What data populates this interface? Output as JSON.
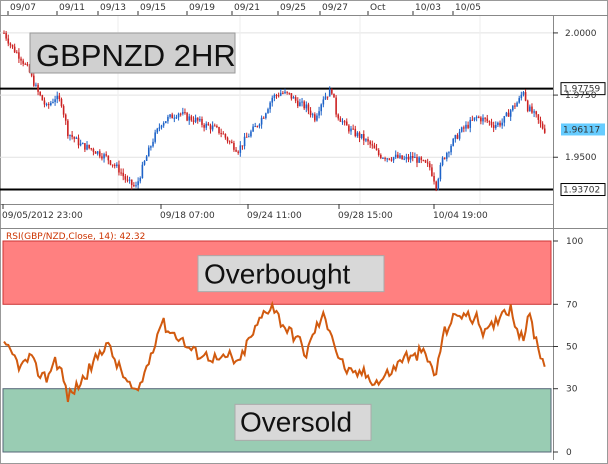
{
  "chart_data": [
    {
      "type": "candlestick",
      "title": "GBPNZD 2HR",
      "top_date_labels": [
        "09/07",
        "09/11",
        "09/13",
        "09/15",
        "09/19",
        "09/21",
        "09/25",
        "09/27",
        "Oct",
        "10/03",
        "10/05"
      ],
      "bottom_time_labels": [
        "09/05/2012 23:00",
        "09/18 07:00",
        "09/24 11:00",
        "09/28 15:00",
        "10/04 19:00"
      ],
      "y_ticks": [
        "2.0000",
        "1.9750",
        "1.9500"
      ],
      "ylim": [
        1.932,
        2.006
      ],
      "levels": [
        {
          "label": "1.97759",
          "value": 1.97759,
          "color": "#000000"
        },
        {
          "label": "1.93702",
          "value": 1.93702,
          "color": "#000000"
        }
      ],
      "current_price": {
        "label": "1.96117",
        "value": 1.96117,
        "color": "#66ccff"
      },
      "up_color": "#1e63c8",
      "down_color": "#cc2222",
      "path": [
        [
          0,
          2.0
        ],
        [
          4,
          1.994
        ],
        [
          8,
          1.99
        ],
        [
          12,
          1.984
        ],
        [
          16,
          1.976
        ],
        [
          20,
          1.97
        ],
        [
          24,
          1.974
        ],
        [
          27,
          1.972
        ],
        [
          30,
          1.96
        ],
        [
          36,
          1.955
        ],
        [
          42,
          1.953
        ],
        [
          48,
          1.95
        ],
        [
          54,
          1.945
        ],
        [
          58,
          1.94
        ],
        [
          62,
          1.938
        ],
        [
          66,
          1.948
        ],
        [
          70,
          1.957
        ],
        [
          74,
          1.964
        ],
        [
          78,
          1.966
        ],
        [
          82,
          1.968
        ],
        [
          86,
          1.966
        ],
        [
          90,
          1.965
        ],
        [
          94,
          1.963
        ],
        [
          98,
          1.962
        ],
        [
          102,
          1.96
        ],
        [
          106,
          1.956
        ],
        [
          110,
          1.953
        ],
        [
          114,
          1.958
        ],
        [
          118,
          1.962
        ],
        [
          122,
          1.967
        ],
        [
          126,
          1.974
        ],
        [
          130,
          1.976
        ],
        [
          134,
          1.975
        ],
        [
          138,
          1.972
        ],
        [
          142,
          1.97
        ],
        [
          146,
          1.966
        ],
        [
          150,
          1.974
        ],
        [
          154,
          1.977
        ],
        [
          156,
          1.968
        ],
        [
          160,
          1.963
        ],
        [
          164,
          1.96
        ],
        [
          168,
          1.958
        ],
        [
          172,
          1.955
        ],
        [
          176,
          1.951
        ],
        [
          180,
          1.95
        ],
        [
          184,
          1.95
        ],
        [
          188,
          1.949
        ],
        [
          192,
          1.95
        ],
        [
          196,
          1.948
        ],
        [
          200,
          1.946
        ],
        [
          203,
          1.939
        ],
        [
          206,
          1.949
        ],
        [
          210,
          1.955
        ],
        [
          214,
          1.96
        ],
        [
          218,
          1.963
        ],
        [
          222,
          1.966
        ],
        [
          226,
          1.965
        ],
        [
          230,
          1.963
        ],
        [
          234,
          1.964
        ],
        [
          238,
          1.969
        ],
        [
          242,
          1.973
        ],
        [
          244,
          1.977
        ],
        [
          246,
          1.97
        ],
        [
          248,
          1.968
        ],
        [
          250,
          1.966
        ],
        [
          252,
          1.963
        ],
        [
          254,
          1.961
        ]
      ]
    },
    {
      "type": "line",
      "indicator_label": "RSI(GBP/NZD,Close, 14): 42.32",
      "ylim": [
        0,
        100
      ],
      "y_ticks": [
        "100",
        "70",
        "50",
        "30",
        "0"
      ],
      "zones": [
        {
          "label": "Overbought",
          "from": 70,
          "to": 100,
          "color": "#ff8080"
        },
        {
          "label": "Oversold",
          "from": 0,
          "to": 30,
          "color": "#99ccb3"
        }
      ],
      "series": [
        {
          "color": "#d15a0f",
          "values": [
            [
              0,
              50
            ],
            [
              4,
              46
            ],
            [
              8,
              40
            ],
            [
              12,
              45
            ],
            [
              16,
              38
            ],
            [
              20,
              35
            ],
            [
              24,
              44
            ],
            [
              27,
              38
            ],
            [
              30,
              26
            ],
            [
              36,
              33
            ],
            [
              42,
              42
            ],
            [
              48,
              52
            ],
            [
              54,
              40
            ],
            [
              58,
              33
            ],
            [
              62,
              27
            ],
            [
              66,
              37
            ],
            [
              70,
              50
            ],
            [
              74,
              62
            ],
            [
              78,
              57
            ],
            [
              82,
              55
            ],
            [
              86,
              50
            ],
            [
              90,
              47
            ],
            [
              94,
              46
            ],
            [
              98,
              45
            ],
            [
              102,
              43
            ],
            [
              106,
              46
            ],
            [
              110,
              41
            ],
            [
              114,
              51
            ],
            [
              118,
              58
            ],
            [
              122,
              66
            ],
            [
              126,
              70
            ],
            [
              130,
              62
            ],
            [
              134,
              57
            ],
            [
              138,
              54
            ],
            [
              142,
              46
            ],
            [
              146,
              58
            ],
            [
              150,
              64
            ],
            [
              154,
              57
            ],
            [
              156,
              48
            ],
            [
              160,
              40
            ],
            [
              164,
              36
            ],
            [
              168,
              38
            ],
            [
              172,
              35
            ],
            [
              176,
              33
            ],
            [
              180,
              37
            ],
            [
              184,
              40
            ],
            [
              188,
              46
            ],
            [
              192,
              44
            ],
            [
              196,
              48
            ],
            [
              200,
              42
            ],
            [
              203,
              36
            ],
            [
              206,
              55
            ],
            [
              210,
              62
            ],
            [
              214,
              66
            ],
            [
              218,
              64
            ],
            [
              222,
              63
            ],
            [
              226,
              56
            ],
            [
              230,
              60
            ],
            [
              234,
              67
            ],
            [
              238,
              68
            ],
            [
              242,
              56
            ],
            [
              244,
              52
            ],
            [
              246,
              66
            ],
            [
              248,
              60
            ],
            [
              250,
              53
            ],
            [
              252,
              47
            ],
            [
              254,
              42
            ]
          ]
        }
      ]
    }
  ]
}
